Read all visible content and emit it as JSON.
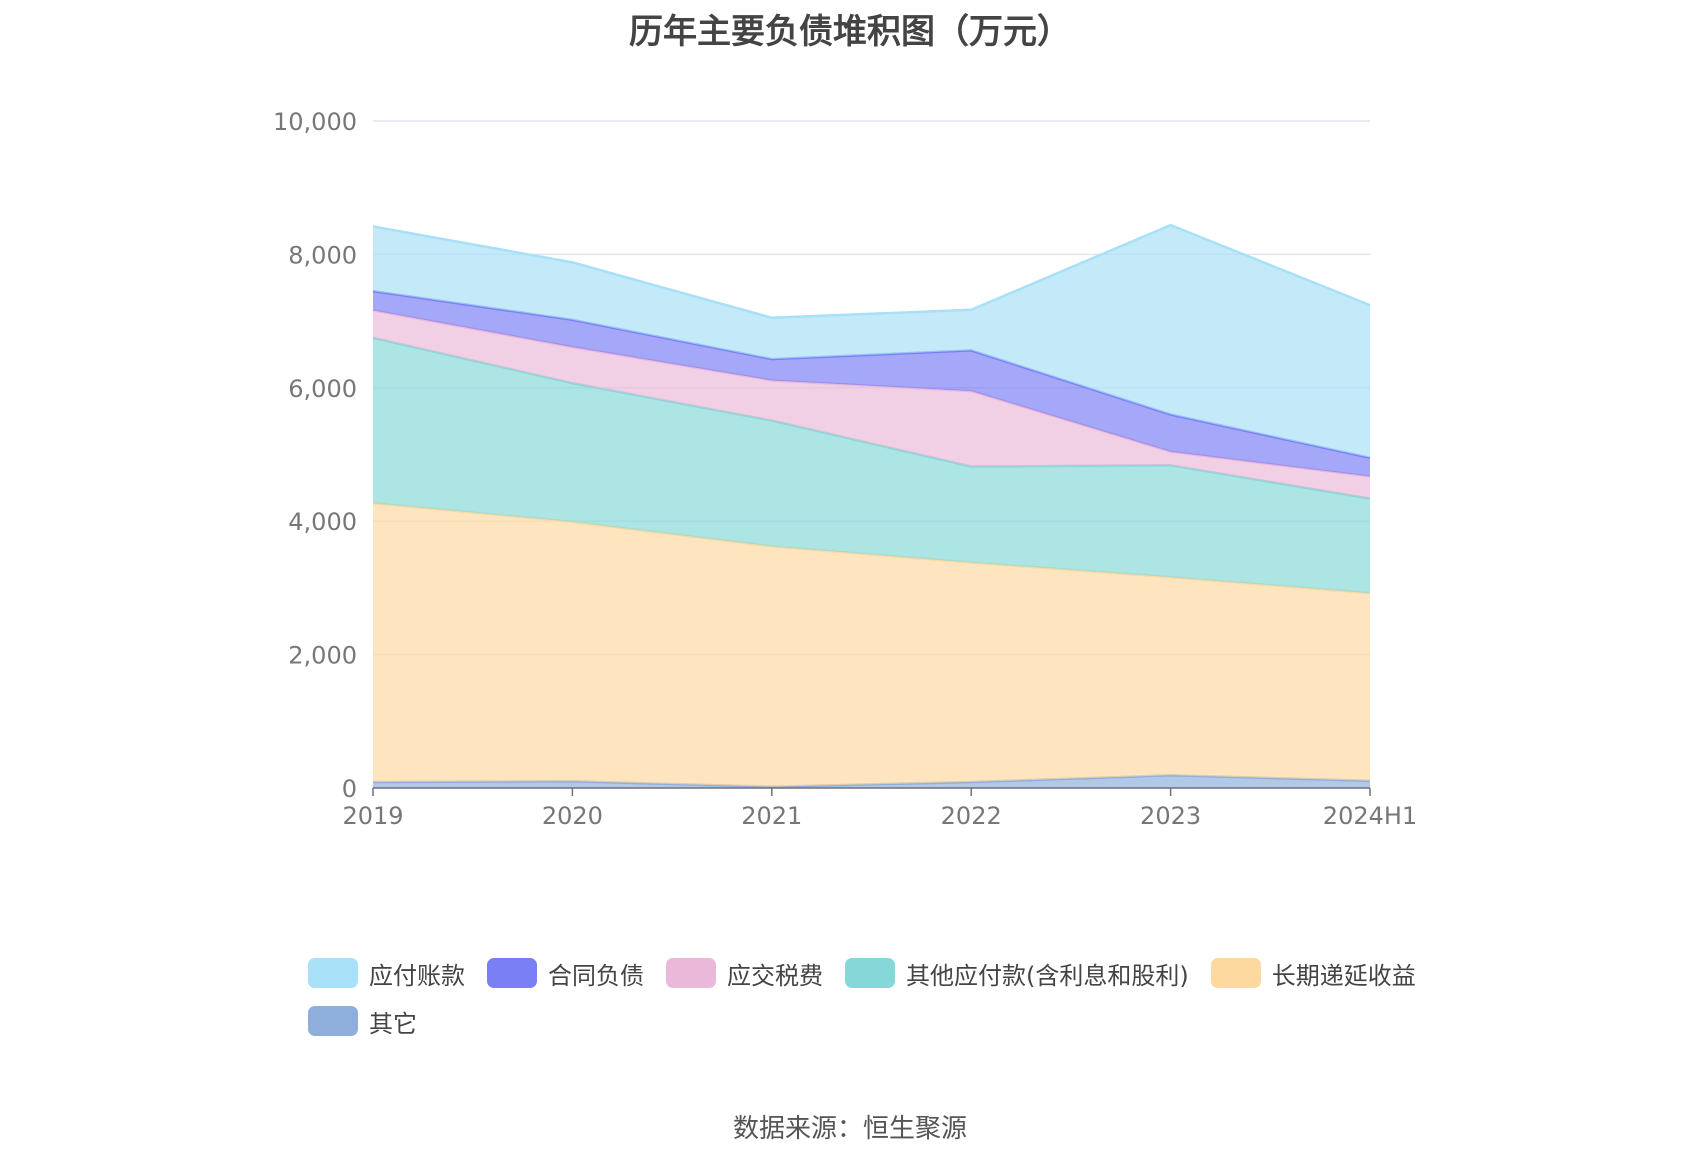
{
  "title": "历年主要负债堆积图（万元）",
  "source": "数据来源：恒生聚源",
  "chart_data": {
    "type": "area",
    "stacked": true,
    "categories": [
      "2019",
      "2020",
      "2021",
      "2022",
      "2023",
      "2024H1"
    ],
    "ylim": [
      0,
      10000
    ],
    "yticks": [
      0,
      2000,
      4000,
      6000,
      8000,
      10000
    ],
    "ytick_labels": [
      "0",
      "2,000",
      "4,000",
      "6,000",
      "8,000",
      "10,000"
    ],
    "grid": true,
    "legend_position": "bottom",
    "series": [
      {
        "name": "其它",
        "color": "#8eaedc",
        "values": [
          90,
          100,
          20,
          90,
          190,
          110
        ]
      },
      {
        "name": "长期递延收益",
        "color": "#fdd9a0",
        "values": [
          4180,
          3890,
          3600,
          3290,
          2970,
          2810
        ]
      },
      {
        "name": "其他应付款(含利息和股利)",
        "color": "#86d8d8",
        "values": [
          2480,
          2080,
          1890,
          1440,
          1680,
          1420
        ]
      },
      {
        "name": "应交税费",
        "color": "#eab9d9",
        "values": [
          410,
          540,
          600,
          1130,
          200,
          330
        ]
      },
      {
        "name": "合同负债",
        "color": "#7b7ff5",
        "values": [
          290,
          410,
          320,
          610,
          560,
          280
        ]
      },
      {
        "name": "应付账款",
        "color": "#a8e0f8",
        "values": [
          970,
          860,
          620,
          610,
          2840,
          2290
        ]
      }
    ],
    "legend_order": [
      "应付账款",
      "合同负债",
      "应交税费",
      "其他应付款(含利息和股利)",
      "长期递延收益",
      "其它"
    ]
  }
}
